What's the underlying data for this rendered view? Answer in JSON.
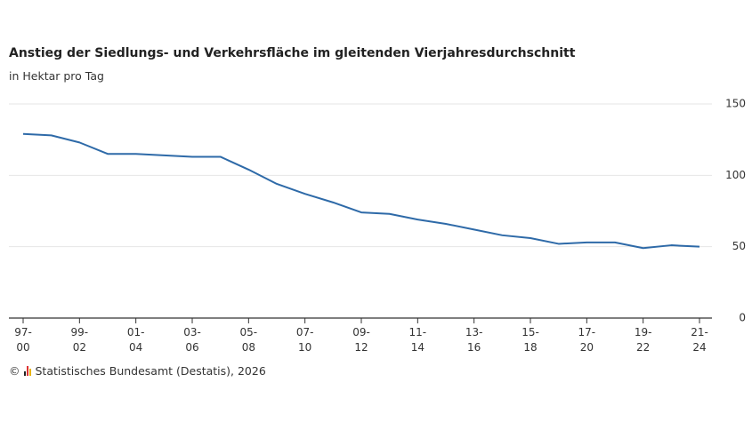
{
  "chart_data": {
    "type": "line",
    "title": "Anstieg der Siedlungs- und Verkehrsfläche im gleitenden Vierjahresdurchschnitt",
    "subtitle": "in Hektar pro Tag",
    "categories": [
      "97-00",
      null,
      "99-02",
      null,
      "01-04",
      null,
      "03-06",
      null,
      "05-08",
      null,
      "07-10",
      null,
      "09-12",
      null,
      "11-14",
      null,
      "13-16",
      null,
      "15-18",
      null,
      "17-20",
      null,
      "19-22",
      null,
      "21-24"
    ],
    "series": [
      {
        "color": "#2e6aa8",
        "values": [
          129,
          128,
          123,
          115,
          115,
          114,
          113,
          113,
          104,
          94,
          87,
          81,
          74,
          73,
          69,
          66,
          62,
          58,
          56,
          52,
          53,
          53,
          49,
          51,
          50
        ]
      }
    ],
    "ylim": [
      0,
      150
    ],
    "yticks": [
      0,
      50,
      100,
      150
    ],
    "grid": true,
    "copyright": "©",
    "source": "Statistisches Bundesamt (Destatis), 2026"
  }
}
